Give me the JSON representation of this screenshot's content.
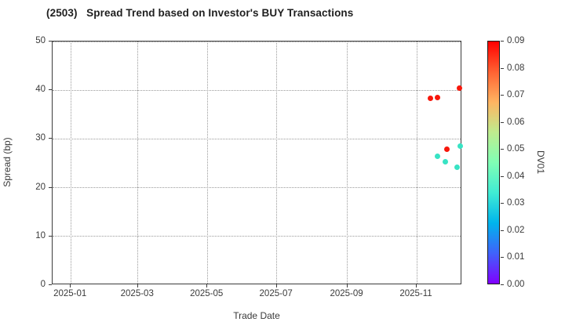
{
  "chart_data": {
    "type": "scatter",
    "title": "(2503)   Spread Trend based on Investor's BUY Transactions",
    "xlabel": "Trade Date",
    "ylabel": "Spread (bp)",
    "colorbar_label": "DV01",
    "xlim": [
      "2024-12-16",
      "2025-12-11"
    ],
    "ylim": [
      0,
      50
    ],
    "grid": true,
    "x_tick_dates": [
      "2025-01-01",
      "2025-03-01",
      "2025-05-01",
      "2025-07-01",
      "2025-09-01",
      "2025-11-01"
    ],
    "x_tick_labels": [
      "2025-01",
      "2025-03",
      "2025-05",
      "2025-07",
      "2025-09",
      "2025-11"
    ],
    "y_ticks": [
      0,
      10,
      20,
      30,
      40,
      50
    ],
    "colorbar_range": [
      0.0,
      0.09
    ],
    "colorbar_tick_labels": [
      "0.00",
      "0.01",
      "0.02",
      "0.03",
      "0.04",
      "0.05",
      "0.06",
      "0.07",
      "0.08",
      "0.09"
    ],
    "colormap_name": "rainbow",
    "colormap_stops": [
      {
        "at": 0.0,
        "color": "#8000ff"
      },
      {
        "at": 0.125,
        "color": "#4062fa"
      },
      {
        "at": 0.25,
        "color": "#00b4ec"
      },
      {
        "at": 0.375,
        "color": "#40ecd4"
      },
      {
        "at": 0.5,
        "color": "#80ffb5"
      },
      {
        "at": 0.625,
        "color": "#bfec8e"
      },
      {
        "at": 0.75,
        "color": "#ffb461"
      },
      {
        "at": 0.875,
        "color": "#ff6232"
      },
      {
        "at": 1.0,
        "color": "#ff0000"
      }
    ],
    "points": [
      {
        "date": "2025-11-14",
        "spread_bp": 38.2,
        "dv01": 0.09,
        "color": "#f7170b"
      },
      {
        "date": "2025-11-20",
        "spread_bp": 38.3,
        "dv01": 0.09,
        "color": "#f7170b"
      },
      {
        "date": "2025-12-09",
        "spread_bp": 40.3,
        "dv01": 0.09,
        "color": "#f7170b"
      },
      {
        "date": "2025-11-28",
        "spread_bp": 27.7,
        "dv01": 0.088,
        "color": "#f7170b"
      },
      {
        "date": "2025-12-10",
        "spread_bp": 28.3,
        "dv01": 0.035,
        "color": "#38e3c4"
      },
      {
        "date": "2025-11-20",
        "spread_bp": 26.3,
        "dv01": 0.035,
        "color": "#38e3c4"
      },
      {
        "date": "2025-11-27",
        "spread_bp": 25.2,
        "dv01": 0.035,
        "color": "#38e3c4"
      },
      {
        "date": "2025-12-07",
        "spread_bp": 24.1,
        "dv01": 0.035,
        "color": "#38e3c4"
      }
    ]
  }
}
